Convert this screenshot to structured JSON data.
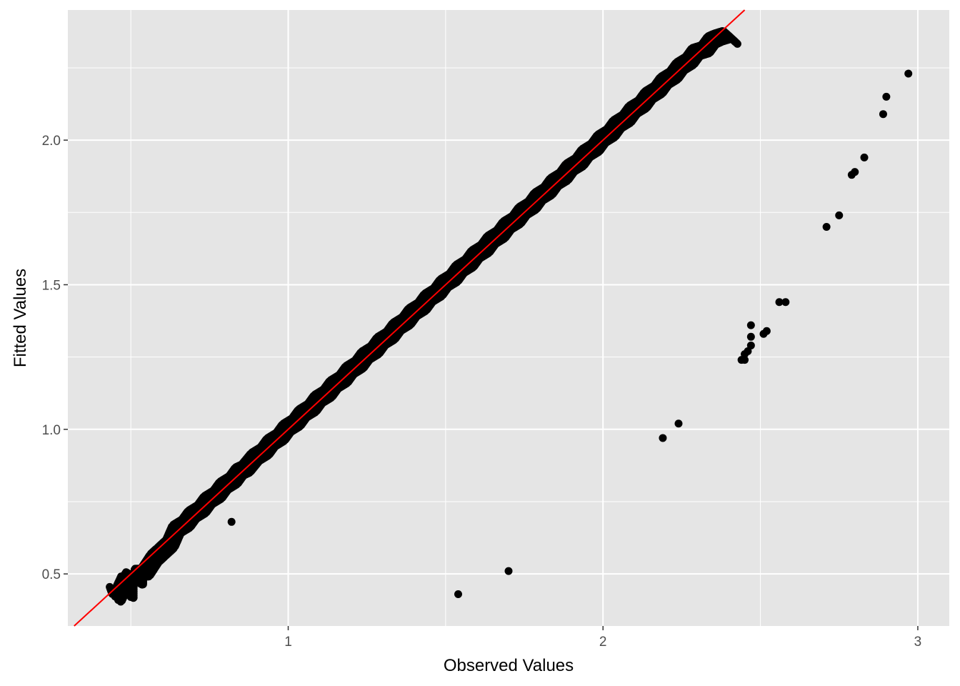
{
  "chart_data": {
    "type": "scatter",
    "xlabel": "Observed Values",
    "ylabel": "Fitted Values",
    "xlim": [
      0.3,
      3.1
    ],
    "ylim": [
      0.32,
      2.45
    ],
    "x_ticks": [
      1,
      2,
      3
    ],
    "x_tick_labels": [
      "1",
      "2",
      "3"
    ],
    "x_minor_ticks": [
      0.5,
      1.5,
      2.5
    ],
    "y_ticks": [
      0.5,
      1.0,
      1.5,
      2.0
    ],
    "y_tick_labels": [
      "0.5",
      "1.0",
      "1.5",
      "2.0"
    ],
    "y_minor_ticks": [
      0.75,
      1.25,
      1.75,
      2.25
    ],
    "grid": true,
    "colors": {
      "panel_background": "#e5e5e5",
      "grid_line": "#ffffff",
      "points": "#000000",
      "reference_line": "#ff0000"
    },
    "reference_line": {
      "intercept": 0,
      "slope": 1
    },
    "main_cloud": {
      "description_x_range": [
        0.45,
        2.45
      ],
      "points": [
        [
          0.45,
          0.44
        ],
        [
          0.46,
          0.41
        ],
        [
          0.49,
          0.48
        ],
        [
          0.5,
          0.42
        ],
        [
          0.5,
          0.49
        ],
        [
          0.53,
          0.47
        ],
        [
          0.53,
          0.5
        ],
        [
          0.55,
          0.5
        ],
        [
          0.58,
          0.55
        ],
        [
          0.6,
          0.57
        ],
        [
          0.63,
          0.6
        ],
        [
          0.65,
          0.65
        ],
        [
          0.68,
          0.67
        ],
        [
          0.7,
          0.7
        ],
        [
          0.73,
          0.72
        ],
        [
          0.75,
          0.75
        ],
        [
          0.78,
          0.77
        ],
        [
          0.8,
          0.8
        ],
        [
          0.83,
          0.82
        ],
        [
          0.85,
          0.85
        ],
        [
          0.87,
          0.86
        ],
        [
          0.9,
          0.9
        ],
        [
          0.93,
          0.92
        ],
        [
          0.95,
          0.95
        ],
        [
          0.98,
          0.97
        ],
        [
          1.0,
          1.0
        ],
        [
          1.03,
          1.02
        ],
        [
          1.05,
          1.05
        ],
        [
          1.08,
          1.07
        ],
        [
          1.1,
          1.1
        ],
        [
          1.13,
          1.12
        ],
        [
          1.15,
          1.15
        ],
        [
          1.18,
          1.17
        ],
        [
          1.2,
          1.2
        ],
        [
          1.23,
          1.22
        ],
        [
          1.25,
          1.25
        ],
        [
          1.28,
          1.27
        ],
        [
          1.3,
          1.3
        ],
        [
          1.33,
          1.32
        ],
        [
          1.35,
          1.35
        ],
        [
          1.38,
          1.37
        ],
        [
          1.4,
          1.4
        ],
        [
          1.43,
          1.42
        ],
        [
          1.45,
          1.45
        ],
        [
          1.48,
          1.47
        ],
        [
          1.5,
          1.5
        ],
        [
          1.53,
          1.52
        ],
        [
          1.55,
          1.55
        ],
        [
          1.58,
          1.57
        ],
        [
          1.6,
          1.6
        ],
        [
          1.63,
          1.62
        ],
        [
          1.65,
          1.65
        ],
        [
          1.68,
          1.67
        ],
        [
          1.7,
          1.7
        ],
        [
          1.73,
          1.72
        ],
        [
          1.75,
          1.75
        ],
        [
          1.78,
          1.77
        ],
        [
          1.8,
          1.8
        ],
        [
          1.83,
          1.82
        ],
        [
          1.85,
          1.85
        ],
        [
          1.88,
          1.87
        ],
        [
          1.9,
          1.9
        ],
        [
          1.93,
          1.92
        ],
        [
          1.95,
          1.95
        ],
        [
          1.98,
          1.97
        ],
        [
          2.0,
          2.0
        ],
        [
          2.03,
          2.02
        ],
        [
          2.05,
          2.05
        ],
        [
          2.08,
          2.07
        ],
        [
          2.1,
          2.1
        ],
        [
          2.13,
          2.12
        ],
        [
          2.15,
          2.15
        ],
        [
          2.18,
          2.17
        ],
        [
          2.2,
          2.2
        ],
        [
          2.23,
          2.22
        ],
        [
          2.25,
          2.25
        ],
        [
          2.28,
          2.27
        ],
        [
          2.3,
          2.3
        ],
        [
          2.33,
          2.31
        ],
        [
          2.35,
          2.34
        ],
        [
          2.37,
          2.35
        ],
        [
          2.4,
          2.36
        ],
        [
          2.42,
          2.34
        ]
      ]
    },
    "outliers": [
      [
        0.82,
        0.68
      ],
      [
        1.54,
        0.43
      ],
      [
        1.7,
        0.51
      ],
      [
        2.19,
        0.97
      ],
      [
        2.24,
        1.02
      ],
      [
        2.44,
        1.24
      ],
      [
        2.45,
        1.24
      ],
      [
        2.45,
        1.26
      ],
      [
        2.46,
        1.27
      ],
      [
        2.47,
        1.29
      ],
      [
        2.47,
        1.32
      ],
      [
        2.47,
        1.36
      ],
      [
        2.51,
        1.33
      ],
      [
        2.52,
        1.34
      ],
      [
        2.56,
        1.44
      ],
      [
        2.58,
        1.44
      ],
      [
        2.71,
        1.7
      ],
      [
        2.75,
        1.74
      ],
      [
        2.79,
        1.88
      ],
      [
        2.8,
        1.89
      ],
      [
        2.83,
        1.94
      ],
      [
        2.89,
        2.09
      ],
      [
        2.9,
        2.15
      ],
      [
        2.97,
        2.23
      ]
    ]
  }
}
